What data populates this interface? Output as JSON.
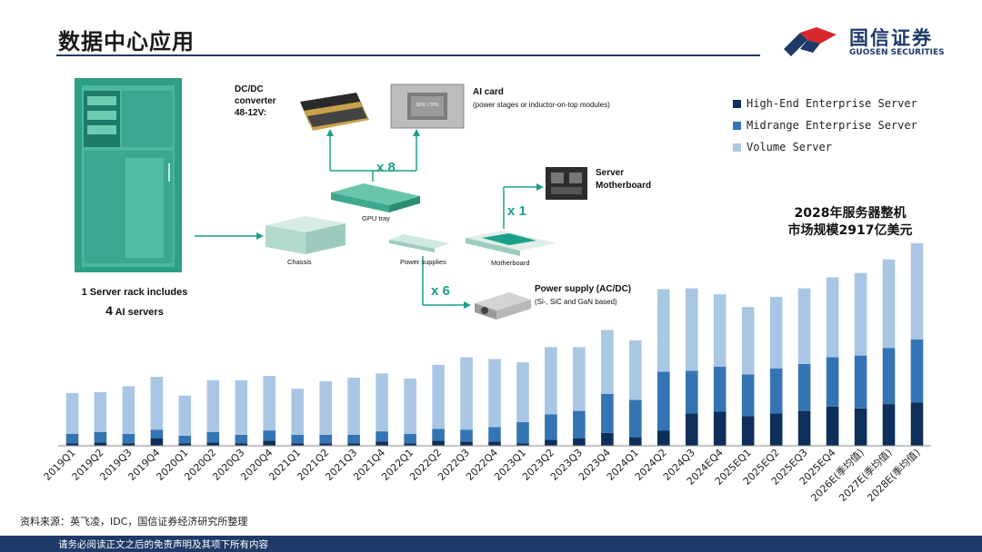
{
  "page": {
    "title": "数据中心应用",
    "source": "资料来源：英飞凌，IDC，国信证券经济研究所整理",
    "footer": "请务必阅读正文之后的免责声明及其项下所有内容"
  },
  "logo": {
    "name_cn": "国信证券",
    "name_en": "GUOSEN SECURITIES",
    "colors": [
      "#1f3a68",
      "#d7252b"
    ]
  },
  "diagram": {
    "rack_caption_line1": "1 Server rack includes",
    "rack_caption_line2_num": "4",
    "rack_caption_line2_text": "AI servers",
    "dcdc_line1": "DC/DC",
    "dcdc_line2": "converter",
    "dcdc_line3": "48-12V:",
    "ai_card_title": "AI card",
    "ai_card_sub": "(power stages or inductor-on-top modules)",
    "gpu_chip_label": "GPU / TPU",
    "x8": "x 8",
    "gpu_tray": "GPU tray",
    "chassis": "Chassis",
    "power_supplies": "Power supplies",
    "motherboard": "Motherboard",
    "x1": "x 1",
    "server_mb_line1": "Server",
    "server_mb_line2": "Motherboard",
    "x6": "x 6",
    "psu_title": "Power supply (AC/DC)",
    "psu_sub": "(Si-, SiC and GaN based)",
    "accent_color": "#1aa08a"
  },
  "market_note": {
    "line1": "2028年服务器整机",
    "line2": "市场规模2917亿美元"
  },
  "chart_data": {
    "type": "bar",
    "stacked": true,
    "categories": [
      "2019Q1",
      "2019Q2",
      "2019Q3",
      "2019Q4",
      "2020Q1",
      "2020Q2",
      "2020Q3",
      "2020Q4",
      "2021Q1",
      "2021Q2",
      "2021Q3",
      "2021Q4",
      "2022Q1",
      "2022Q2",
      "2022Q3",
      "2022Q4",
      "2023Q1",
      "2023Q2",
      "2023Q3",
      "2023Q4",
      "2024Q1",
      "2024Q2",
      "2024Q3",
      "2024EQ4",
      "2025EQ1",
      "2025EQ2",
      "2025EQ3",
      "2025EQ4",
      "2026E(季均值)",
      "2027E(季均值)",
      "2028E(季均值)"
    ],
    "series": [
      {
        "name": "High-End Enterprise Server",
        "color": "#0d2f5a",
        "values": [
          3,
          4,
          3,
          9,
          3,
          4,
          3,
          6,
          3,
          3,
          3,
          5,
          3,
          6,
          5,
          5,
          3,
          7,
          9,
          15,
          10,
          18,
          38,
          40,
          35,
          38,
          41,
          46,
          44,
          49,
          51
        ]
      },
      {
        "name": "Midrange Enterprise Server",
        "color": "#3574b4",
        "values": [
          11,
          12,
          11,
          10,
          9,
          12,
          10,
          12,
          10,
          10,
          10,
          12,
          11,
          14,
          14,
          17,
          25,
          30,
          32,
          46,
          44,
          69,
          50,
          53,
          49,
          53,
          55,
          58,
          62,
          66,
          74
        ]
      },
      {
        "name": "Volume Server",
        "color": "#a9c7e4",
        "values": [
          48,
          47,
          56,
          62,
          47,
          61,
          64,
          64,
          54,
          63,
          67,
          68,
          65,
          75,
          85,
          80,
          70,
          79,
          75,
          75,
          70,
          97,
          97,
          85,
          79,
          84,
          89,
          94,
          97,
          104,
          113
        ]
      }
    ],
    "ylim": [
      0,
      240
    ],
    "legend": "top-right",
    "grid": false
  }
}
